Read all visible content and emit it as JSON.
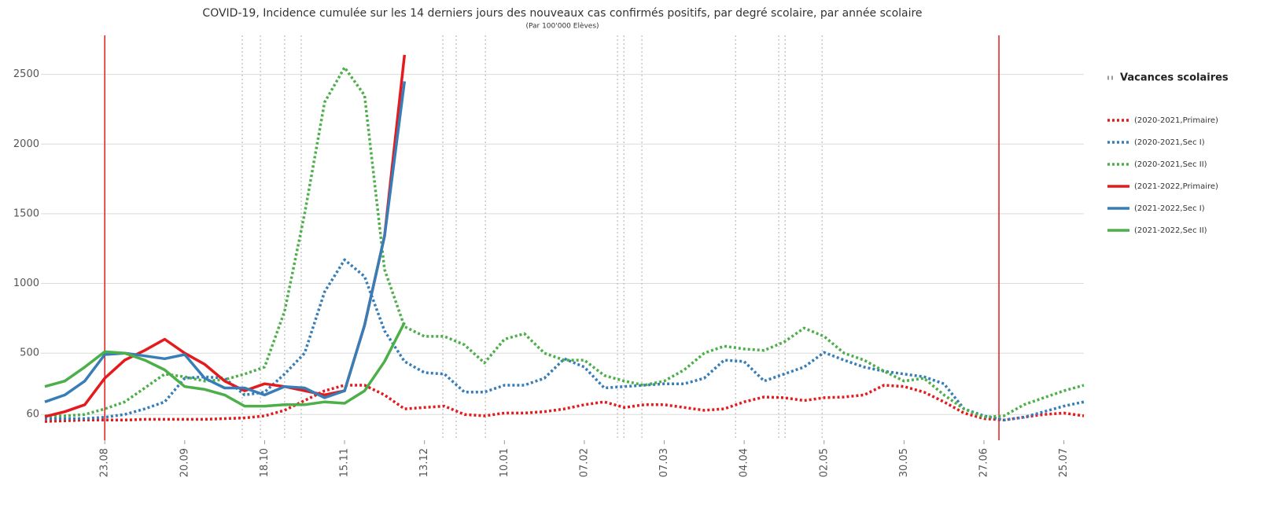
{
  "chart_data": {
    "type": "line",
    "title": "COVID-19, Incidence cumulée sur les 14 derniers jours des nouveaux cas confirmés positifs, par degré scolaire, par année scolaire",
    "subtitle": "(Par 100'000 Elèves)",
    "legend_title": "Vacances scolaires",
    "categories": [
      null,
      null,
      null,
      "23.08",
      null,
      null,
      null,
      "20.09",
      null,
      null,
      null,
      "18.10",
      null,
      null,
      null,
      "15.11",
      null,
      null,
      null,
      "13.12",
      null,
      null,
      null,
      "10.01",
      null,
      null,
      null,
      "07.02",
      null,
      null,
      null,
      "07.03",
      null,
      null,
      null,
      "04.04",
      null,
      null,
      null,
      "02.05",
      null,
      null,
      null,
      "30.05",
      null,
      null,
      null,
      "27.06",
      null,
      null,
      null,
      "25.07",
      null
    ],
    "ylim": [
      -125,
      2780
    ],
    "yticks": [
      60,
      500,
      1000,
      1500,
      2000,
      2500
    ],
    "grid": true,
    "legend": "right",
    "vacation_lines": [
      9.88,
      10.79,
      12.0,
      12.83,
      19.92,
      20.59,
      22.05,
      28.66,
      28.98,
      29.88,
      34.57,
      36.73,
      37.05,
      38.9
    ],
    "vacation_color": "#bbbbbb",
    "school_year_lines": [
      3,
      47.75
    ],
    "school_year_color": "#e41a1c",
    "series": [
      {
        "name": "(2020-2021,Primaire)",
        "color": "#e41a1c",
        "dashed": true,
        "values": [
          10,
          15,
          20,
          20,
          20,
          25,
          25,
          25,
          25,
          30,
          35,
          50,
          90,
          160,
          230,
          270,
          270,
          200,
          100,
          110,
          120,
          60,
          50,
          70,
          70,
          80,
          100,
          130,
          150,
          110,
          130,
          130,
          110,
          90,
          100,
          150,
          185,
          180,
          160,
          180,
          185,
          200,
          270,
          260,
          220,
          150,
          70,
          30,
          20,
          40,
          60,
          70,
          50
        ]
      },
      {
        "name": "(2020-2021,Sec I)",
        "color": "#377eb8",
        "dashed": true,
        "values": [
          30,
          30,
          30,
          40,
          60,
          100,
          150,
          320,
          330,
          320,
          200,
          220,
          350,
          500,
          940,
          1170,
          1050,
          660,
          440,
          360,
          350,
          220,
          220,
          270,
          270,
          320,
          460,
          400,
          250,
          260,
          270,
          280,
          280,
          320,
          450,
          440,
          300,
          350,
          400,
          505,
          450,
          400,
          370,
          350,
          330,
          280,
          100,
          50,
          20,
          40,
          80,
          120,
          150
        ]
      },
      {
        "name": "(2020-2021,Sec II)",
        "color": "#4daf4a",
        "dashed": true,
        "values": [
          50,
          50,
          60,
          100,
          150,
          250,
          350,
          330,
          300,
          310,
          350,
          400,
          800,
          1500,
          2300,
          2550,
          2350,
          1100,
          690,
          620,
          620,
          560,
          430,
          600,
          640,
          500,
          450,
          450,
          340,
          300,
          270,
          300,
          380,
          500,
          550,
          530,
          520,
          580,
          680,
          620,
          500,
          450,
          370,
          300,
          320,
          200,
          100,
          40,
          50,
          130,
          180,
          230,
          270
        ]
      },
      {
        "name": "(2021-2022,Primaire)",
        "color": "#e41a1c",
        "dashed": false,
        "values": [
          45,
          80,
          130,
          320,
          450,
          520,
          600,
          500,
          420,
          300,
          230,
          280,
          260,
          230,
          200,
          230,
          700,
          1340,
          2640,
          null,
          null,
          null,
          null,
          null,
          null,
          null,
          null,
          null,
          null,
          null,
          null,
          null,
          null,
          null,
          null,
          null,
          null,
          null,
          null,
          null,
          null,
          null,
          null,
          null,
          null,
          null,
          null,
          null,
          null,
          null,
          null,
          null,
          null
        ]
      },
      {
        "name": "(2021-2022,Sec I)",
        "color": "#377eb8",
        "dashed": false,
        "values": [
          150,
          200,
          300,
          490,
          500,
          480,
          460,
          490,
          320,
          250,
          250,
          200,
          260,
          250,
          180,
          230,
          700,
          1340,
          2450,
          null,
          null,
          null,
          null,
          null,
          null,
          null,
          null,
          null,
          null,
          null,
          null,
          null,
          null,
          null,
          null,
          null,
          null,
          null,
          null,
          null,
          null,
          null,
          null,
          null,
          null,
          null,
          null,
          null,
          null,
          null,
          null,
          null,
          null
        ]
      },
      {
        "name": "(2021-2022,Sec II)",
        "color": "#4daf4a",
        "dashed": false,
        "values": [
          260,
          300,
          400,
          510,
          500,
          450,
          380,
          260,
          240,
          200,
          120,
          120,
          130,
          130,
          150,
          140,
          230,
          440,
          720,
          null,
          null,
          null,
          null,
          null,
          null,
          null,
          null,
          null,
          null,
          null,
          null,
          null,
          null,
          null,
          null,
          null,
          null,
          null,
          null,
          null,
          null,
          null,
          null,
          null,
          null,
          null,
          null,
          null,
          null,
          null,
          null,
          null,
          null
        ]
      }
    ]
  }
}
